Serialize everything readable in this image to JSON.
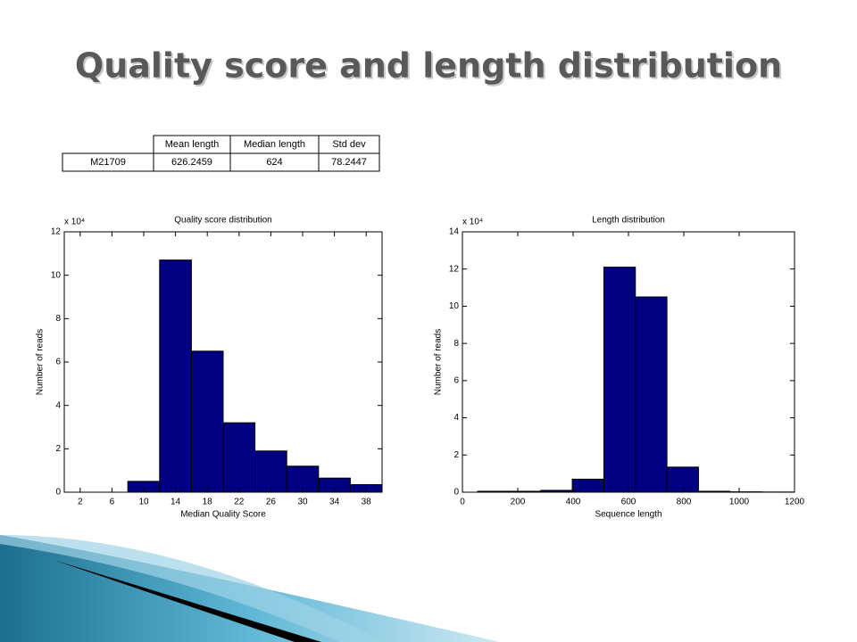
{
  "title": "Quality score and length distribution",
  "table": {
    "header": [
      "Mean length",
      "Median length",
      "Std dev"
    ],
    "rows": [
      [
        "M21709",
        "626.2459",
        "624",
        "78.2447"
      ]
    ]
  },
  "chart_data": [
    {
      "type": "histogram",
      "title": "Quality score distribution",
      "xlabel": "Median Quality Score",
      "ylabel": "Number of reads",
      "y_offset_text": "x 10⁴",
      "color": "#000080",
      "bins": [
        0,
        4,
        8,
        12,
        16,
        20,
        24,
        28,
        32,
        36,
        40
      ],
      "counts": [
        0,
        0,
        0.5,
        10.7,
        6.5,
        3.2,
        1.9,
        1.2,
        0.65,
        0.35
      ],
      "xlim": [
        0,
        40
      ],
      "xticks": [
        2,
        6,
        10,
        14,
        18,
        22,
        26,
        30,
        34,
        38
      ],
      "ylim": [
        0,
        12
      ],
      "yticks": [
        0,
        2,
        4,
        6,
        8,
        10,
        12
      ]
    },
    {
      "type": "histogram",
      "title": "Length distribution",
      "xlabel": "Sequence length",
      "ylabel": "Number of reads",
      "y_offset_text": "x 10⁴",
      "color": "#000080",
      "bins": [
        55,
        169,
        283,
        397,
        511,
        625,
        739,
        853,
        967,
        1081,
        1195
      ],
      "counts": [
        0.05,
        0.05,
        0.1,
        0.7,
        12.1,
        10.5,
        1.35,
        0.05,
        0.02,
        0.01
      ],
      "xlim": [
        0,
        1200
      ],
      "xticks": [
        0,
        200,
        400,
        600,
        800,
        1000,
        1200
      ],
      "ylim": [
        0,
        14
      ],
      "yticks": [
        0,
        2,
        4,
        6,
        8,
        10,
        12,
        14
      ]
    }
  ]
}
